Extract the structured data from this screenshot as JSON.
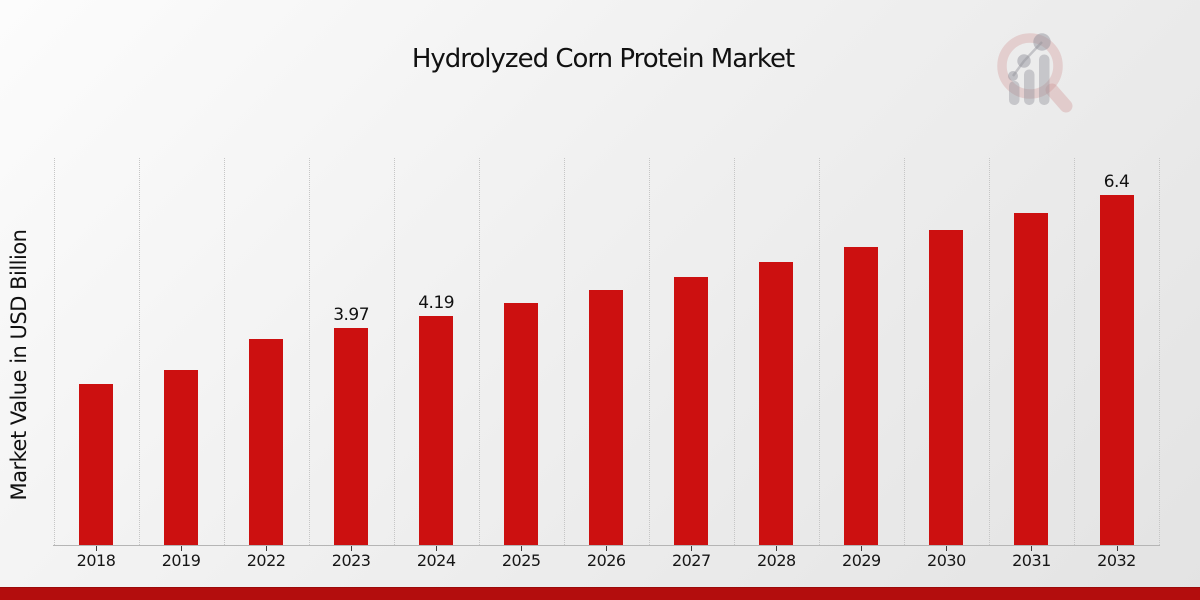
{
  "chart_data": {
    "type": "bar",
    "title": "Hydrolyzed Corn Protein Market",
    "xlabel": "",
    "ylabel": "Market Value in USD Billion",
    "categories": [
      "2018",
      "2019",
      "2022",
      "2023",
      "2024",
      "2025",
      "2026",
      "2027",
      "2028",
      "2029",
      "2030",
      "2031",
      "2032"
    ],
    "values": [
      2.95,
      3.21,
      3.76,
      3.97,
      4.19,
      4.42,
      4.66,
      4.91,
      5.18,
      5.46,
      5.76,
      6.07,
      6.4
    ],
    "bar_labels": [
      "",
      "",
      "",
      "3.97",
      "4.19",
      "",
      "",
      "",
      "",
      "",
      "",
      "",
      "6.4"
    ],
    "ylim": [
      0,
      7.08
    ],
    "grid": "vertical-dotted-gridlines",
    "legend": "none",
    "bar_color": "#cc1010"
  },
  "branding": {
    "logo_icon": "magnifier-bar-chart-watermark-icon",
    "ring_color": "#d9aeae",
    "glyph_color": "#bfbfc4"
  },
  "footer": {
    "band_color": "#b30d0d"
  }
}
